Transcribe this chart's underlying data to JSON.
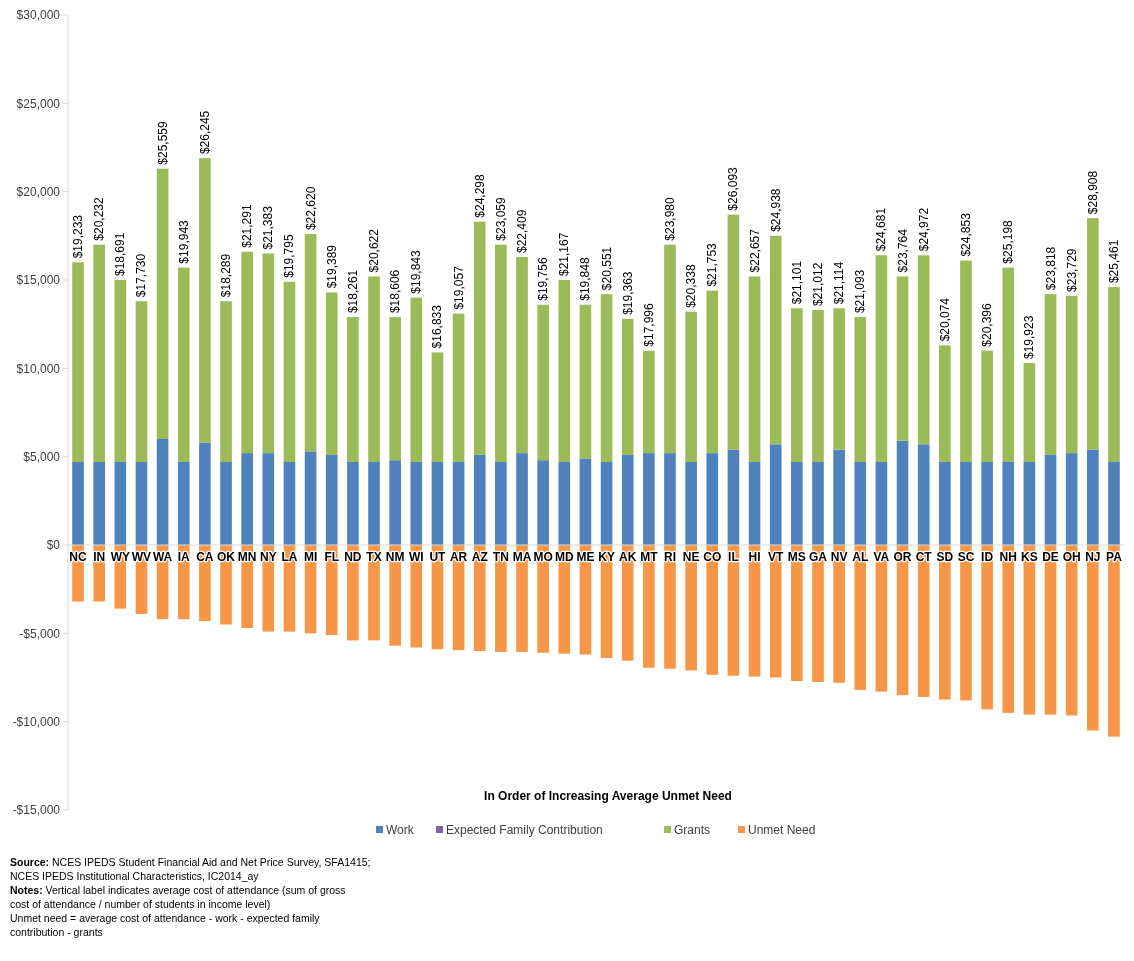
{
  "chart_data": {
    "type": "bar",
    "stacked": true,
    "xlabel": "In Order of Increasing Average Unmet Need",
    "categories": [
      "NC",
      "IN",
      "WY",
      "WV",
      "WA",
      "IA",
      "CA",
      "OK",
      "MN",
      "NY",
      "LA",
      "MI",
      "FL",
      "ND",
      "TX",
      "NM",
      "WI",
      "UT",
      "AR",
      "AZ",
      "TN",
      "MA",
      "MO",
      "MD",
      "ME",
      "KY",
      "AK",
      "MT",
      "RI",
      "NE",
      "CO",
      "IL",
      "HI",
      "VT",
      "MS",
      "GA",
      "NV",
      "AL",
      "VA",
      "OR",
      "CT",
      "SD",
      "SC",
      "ID",
      "NH",
      "KS",
      "DE",
      "OH",
      "NJ",
      "PA"
    ],
    "series": [
      {
        "name": "Work",
        "color": "#4f81bd",
        "values": [
          4700,
          4700,
          4700,
          4700,
          6000,
          4700,
          5800,
          4700,
          5200,
          5200,
          4700,
          5300,
          5100,
          4700,
          4700,
          4800,
          4700,
          4700,
          4700,
          5100,
          4700,
          5200,
          4800,
          4700,
          4900,
          4700,
          5100,
          5200,
          5200,
          4700,
          5200,
          5400,
          4700,
          5700,
          4700,
          4700,
          5400,
          4700,
          4700,
          5900,
          5700,
          4700,
          4700,
          4700,
          4700,
          4700,
          5100,
          5200,
          5400,
          4700
        ]
      },
      {
        "name": "Expected Family Contribution",
        "color": "#8064a2",
        "values": [
          0,
          0,
          0,
          0,
          0,
          0,
          0,
          0,
          0,
          0,
          0,
          0,
          0,
          0,
          0,
          0,
          0,
          0,
          0,
          0,
          0,
          0,
          0,
          0,
          0,
          0,
          0,
          0,
          0,
          0,
          0,
          0,
          0,
          0,
          0,
          0,
          0,
          0,
          0,
          0,
          0,
          0,
          0,
          0,
          0,
          0,
          0,
          0,
          0,
          0
        ]
      },
      {
        "name": "Grants",
        "color": "#9bbb59",
        "values": [
          11300,
          12300,
          10300,
          9100,
          15300,
          11000,
          16100,
          9100,
          11400,
          11300,
          10200,
          12300,
          9200,
          8200,
          10500,
          8100,
          9300,
          6200,
          8400,
          13200,
          12300,
          11100,
          8800,
          10300,
          8700,
          9500,
          7700,
          5800,
          11800,
          8500,
          9200,
          13300,
          10500,
          11800,
          8700,
          8600,
          8000,
          8200,
          11700,
          9300,
          10700,
          6600,
          11400,
          6300,
          11000,
          5600,
          9100,
          8900,
          13100,
          9900
        ]
      },
      {
        "name": "Unmet Need",
        "color": "#f79646",
        "values": [
          -3200,
          -3200,
          -3600,
          -3900,
          -4200,
          -4200,
          -4300,
          -4500,
          -4700,
          -4900,
          -4900,
          -5000,
          -5100,
          -5400,
          -5400,
          -5700,
          -5800,
          -5900,
          -5950,
          -6000,
          -6050,
          -6050,
          -6100,
          -6150,
          -6200,
          -6400,
          -6550,
          -6950,
          -7000,
          -7100,
          -7350,
          -7400,
          -7450,
          -7500,
          -7700,
          -7750,
          -7800,
          -8200,
          -8300,
          -8500,
          -8600,
          -8750,
          -8800,
          -9300,
          -9500,
          -9600,
          -9600,
          -9650,
          -10500,
          -10850
        ]
      }
    ],
    "ylim": [
      -15000,
      30000
    ],
    "yticks": [
      {
        "value": -15000,
        "label": "-$15,000"
      },
      {
        "value": -10000,
        "label": "-$10,000"
      },
      {
        "value": -5000,
        "label": "-$5,000"
      },
      {
        "value": 0,
        "label": "$0"
      },
      {
        "value": 5000,
        "label": "$5,000"
      },
      {
        "value": 10000,
        "label": "$10,000"
      },
      {
        "value": 15000,
        "label": "$15,000"
      },
      {
        "value": 20000,
        "label": "$20,000"
      },
      {
        "value": 25000,
        "label": "$25,000"
      },
      {
        "value": 30000,
        "label": "$30,000"
      }
    ],
    "legend": "bottom",
    "annotations": [
      {
        "text": "$19,233",
        "x": "NC",
        "y": 16000
      },
      {
        "text": "$20,232",
        "x": "IN",
        "y": 17000
      },
      {
        "text": "$18,691",
        "x": "WY",
        "y": 15000
      },
      {
        "text": "$17,730",
        "x": "WV",
        "y": 13800
      },
      {
        "text": "$25,559",
        "x": "WA",
        "y": 21300
      },
      {
        "text": "$19,943",
        "x": "IA",
        "y": 15700
      },
      {
        "text": "$26,245",
        "x": "CA",
        "y": 21900
      },
      {
        "text": "$18,289",
        "x": "OK",
        "y": 13800
      },
      {
        "text": "$21,291",
        "x": "MN",
        "y": 16600
      },
      {
        "text": "$21,383",
        "x": "NY",
        "y": 16500
      },
      {
        "text": "$19,795",
        "x": "LA",
        "y": 14900
      },
      {
        "text": "$22,620",
        "x": "MI",
        "y": 17600
      },
      {
        "text": "$19,389",
        "x": "FL",
        "y": 14300
      },
      {
        "text": "$18,261",
        "x": "ND",
        "y": 12900
      },
      {
        "text": "$20,622",
        "x": "TX",
        "y": 15200
      },
      {
        "text": "$18,606",
        "x": "NM",
        "y": 12900
      },
      {
        "text": "$19,843",
        "x": "WI",
        "y": 14000
      },
      {
        "text": "$16,833",
        "x": "UT",
        "y": 10900
      },
      {
        "text": "$19,057",
        "x": "AR",
        "y": 13100
      },
      {
        "text": "$24,298",
        "x": "AZ",
        "y": 18300
      },
      {
        "text": "$23,059",
        "x": "TN",
        "y": 17000
      },
      {
        "text": "$22,409",
        "x": "MA",
        "y": 16300
      },
      {
        "text": "$19,756",
        "x": "MO",
        "y": 13600
      },
      {
        "text": "$21,167",
        "x": "MD",
        "y": 15000
      },
      {
        "text": "$19,848",
        "x": "ME",
        "y": 13600
      },
      {
        "text": "$20,551",
        "x": "KY",
        "y": 14200
      },
      {
        "text": "$19,363",
        "x": "AK",
        "y": 12800
      },
      {
        "text": "$17,996",
        "x": "MT",
        "y": 11000
      },
      {
        "text": "$23,980",
        "x": "RI",
        "y": 17000
      },
      {
        "text": "$20,338",
        "x": "NE",
        "y": 13200
      },
      {
        "text": "$21,753",
        "x": "CO",
        "y": 14400
      },
      {
        "text": "$26,093",
        "x": "IL",
        "y": 18700
      },
      {
        "text": "$22,657",
        "x": "HI",
        "y": 15200
      },
      {
        "text": "$24,938",
        "x": "VT",
        "y": 17500
      },
      {
        "text": "$21,101",
        "x": "MS",
        "y": 13400
      },
      {
        "text": "$21,012",
        "x": "GA",
        "y": 13300
      },
      {
        "text": "$21,114",
        "x": "NV",
        "y": 13400
      },
      {
        "text": "$21,093",
        "x": "AL",
        "y": 12900
      },
      {
        "text": "$24,681",
        "x": "VA",
        "y": 16400
      },
      {
        "text": "$23,764",
        "x": "OR",
        "y": 15200
      },
      {
        "text": "$24,972",
        "x": "CT",
        "y": 16400
      },
      {
        "text": "$20,074",
        "x": "SD",
        "y": 11300
      },
      {
        "text": "$24,853",
        "x": "SC",
        "y": 16100
      },
      {
        "text": "$20,396",
        "x": "ID",
        "y": 11000
      },
      {
        "text": "$25,198",
        "x": "NH",
        "y": 15700
      },
      {
        "text": "$19,923",
        "x": "KS",
        "y": 10300
      },
      {
        "text": "$23,818",
        "x": "DE",
        "y": 14200
      },
      {
        "text": "$23,729",
        "x": "OH",
        "y": 14100
      },
      {
        "text": "$28,908",
        "x": "NJ",
        "y": 18500
      },
      {
        "text": "$25,461",
        "x": "PA",
        "y": 14600
      },
      "Source: NCES IPEDS Student Financial Aid and Net Price Survey, SFA1415; NCES IPEDS Institutional Characteristics, IC2014_ay",
      "Notes: Vertical label indicates average cost of attendance (sum of gross cost of attendance / number of students in income level)",
      "Unmet need = average cost of attendance - work - expected family contribution - grants"
    ]
  }
}
